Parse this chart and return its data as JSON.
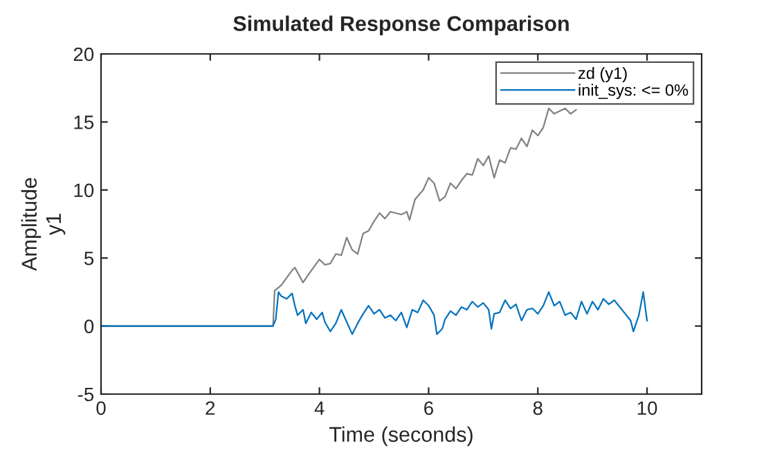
{
  "chart_data": {
    "type": "line",
    "title": "Simulated Response Comparison",
    "xlabel": "Time (seconds)",
    "ylabel": "Amplitude\ny1",
    "xlim": [
      0,
      11
    ],
    "xticks": [
      0,
      2,
      4,
      6,
      8,
      10
    ],
    "ylim": [
      -5,
      20
    ],
    "yticks": [
      -5,
      0,
      5,
      10,
      15,
      20
    ],
    "grid": false,
    "legend": "top right",
    "series": [
      {
        "name": "zd (y1)",
        "color": "#808080",
        "x": [
          0,
          3.15,
          3.18,
          3.3,
          3.5,
          3.55,
          3.7,
          3.8,
          4.0,
          4.1,
          4.2,
          4.3,
          4.4,
          4.5,
          4.6,
          4.7,
          4.8,
          4.9,
          5.0,
          5.1,
          5.2,
          5.3,
          5.5,
          5.6,
          5.65,
          5.75,
          5.9,
          6.0,
          6.1,
          6.2,
          6.3,
          6.4,
          6.5,
          6.6,
          6.7,
          6.8,
          6.9,
          7.0,
          7.1,
          7.2,
          7.3,
          7.4,
          7.5,
          7.6,
          7.7,
          7.8,
          7.9,
          8.0,
          8.1,
          8.2,
          8.3,
          8.5,
          8.6,
          8.7
        ],
        "values": [
          0,
          0,
          2.6,
          3.0,
          4.1,
          4.3,
          3.2,
          3.8,
          4.9,
          4.5,
          4.6,
          5.3,
          5.2,
          6.5,
          5.6,
          5.3,
          6.8,
          7.0,
          7.7,
          8.3,
          7.9,
          8.4,
          8.2,
          8.4,
          7.8,
          9.3,
          10.0,
          10.9,
          10.5,
          9.2,
          9.5,
          10.5,
          10.1,
          10.7,
          11.2,
          11.1,
          12.3,
          11.8,
          12.5,
          10.9,
          12.2,
          12.0,
          13.1,
          13.0,
          13.8,
          13.2,
          14.4,
          14.0,
          14.6,
          16.0,
          15.6,
          16.0,
          15.6,
          15.9
        ]
      },
      {
        "name": "init_sys: <= 0%",
        "color": "#0072bd",
        "x": [
          0,
          3.15,
          3.2,
          3.25,
          3.3,
          3.4,
          3.5,
          3.55,
          3.6,
          3.7,
          3.75,
          3.85,
          3.95,
          4.05,
          4.1,
          4.2,
          4.3,
          4.4,
          4.5,
          4.6,
          4.7,
          4.8,
          4.9,
          5.0,
          5.1,
          5.2,
          5.3,
          5.4,
          5.5,
          5.6,
          5.7,
          5.8,
          5.9,
          6.0,
          6.1,
          6.15,
          6.25,
          6.3,
          6.4,
          6.5,
          6.6,
          6.7,
          6.8,
          6.9,
          7.0,
          7.1,
          7.15,
          7.2,
          7.3,
          7.4,
          7.5,
          7.6,
          7.7,
          7.8,
          7.9,
          8.0,
          8.1,
          8.2,
          8.3,
          8.4,
          8.5,
          8.6,
          8.7,
          8.8,
          8.9,
          9.0,
          9.1,
          9.2,
          9.3,
          9.4,
          9.5,
          9.6,
          9.7,
          9.75,
          9.85,
          9.93,
          10.0
        ],
        "values": [
          0,
          0,
          0.5,
          2.5,
          2.2,
          2.0,
          2.4,
          1.5,
          0.8,
          1.2,
          0.2,
          1.0,
          0.5,
          1.0,
          0.3,
          -0.4,
          0.2,
          1.2,
          0.3,
          -0.6,
          0.2,
          0.9,
          1.5,
          0.9,
          1.2,
          0.6,
          0.8,
          0.4,
          1.0,
          -0.1,
          1.2,
          1.0,
          1.9,
          1.5,
          0.8,
          -0.6,
          -0.2,
          0.5,
          1.1,
          0.8,
          1.4,
          1.2,
          1.8,
          1.4,
          1.7,
          1.2,
          -0.2,
          0.9,
          1.0,
          1.9,
          1.3,
          1.6,
          0.4,
          1.2,
          1.3,
          0.9,
          1.5,
          2.5,
          1.5,
          1.8,
          0.8,
          1.0,
          0.5,
          1.8,
          0.9,
          1.8,
          1.2,
          2.0,
          1.6,
          1.9,
          1.4,
          0.9,
          0.4,
          -0.4,
          0.8,
          2.5,
          0.4
        ]
      }
    ]
  }
}
